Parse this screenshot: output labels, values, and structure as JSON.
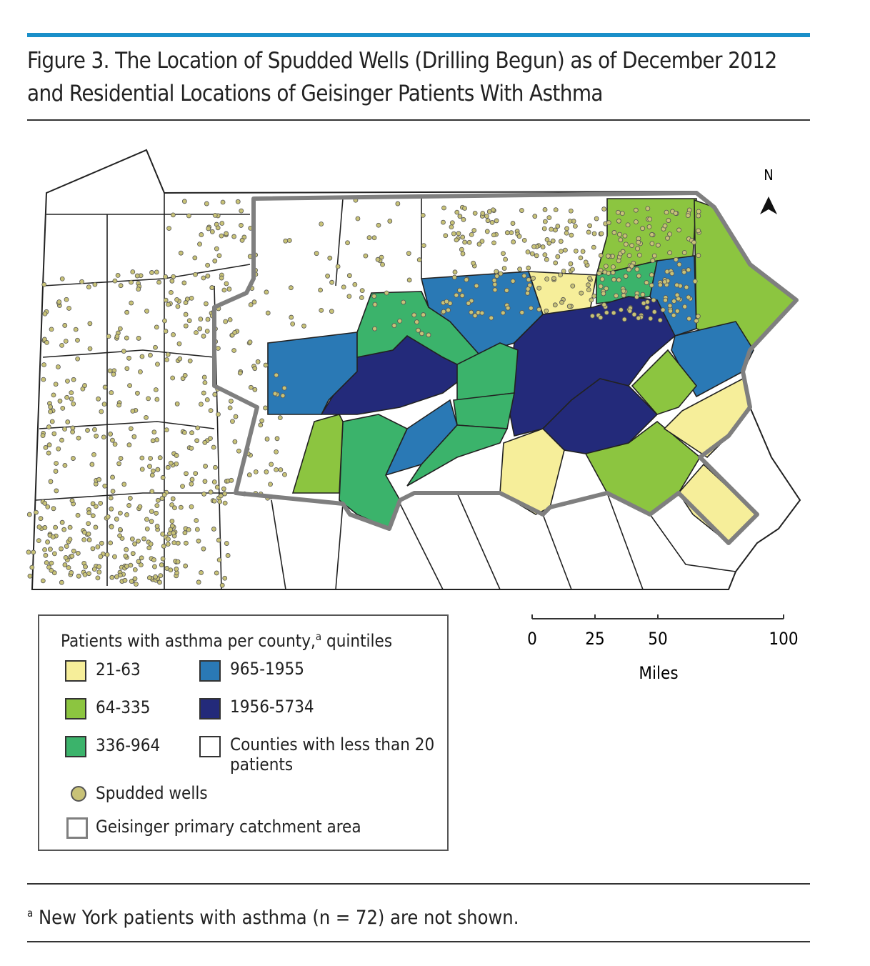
{
  "figure": {
    "title": "Figure 3. The Location of Spudded Wells (Drilling Begun) as of December 2012 and Residential Locations of Geisinger Patients With Asthma",
    "map": {
      "north_label": "N"
    },
    "legend": {
      "title": "Patients with asthma per county,",
      "title_note": "a",
      "title_end": "quintiles",
      "items": [
        {
          "label": "21-63",
          "color": "#f6ee9a"
        },
        {
          "label": "64-335",
          "color": "#8cc540"
        },
        {
          "label": "336-964",
          "color": "#3bb36b"
        },
        {
          "label": "965-1955",
          "color": "#2a79b5"
        },
        {
          "label": "1956-5734",
          "color": "#232a7a"
        },
        {
          "label": "Counties with less  than 20 patients",
          "color": "#ffffff"
        }
      ],
      "symbols": [
        {
          "label": "Spudded wells",
          "color": "#c8c277"
        },
        {
          "label": "Geisinger primary catchment area",
          "color": "#7f7f7f"
        }
      ]
    },
    "scale_bar": {
      "ticks": [
        0,
        25,
        50,
        100
      ],
      "unit": "Miles"
    },
    "footnote": {
      "mark": "a",
      "text": "New York patients with asthma (n = 72) are not shown."
    }
  }
}
